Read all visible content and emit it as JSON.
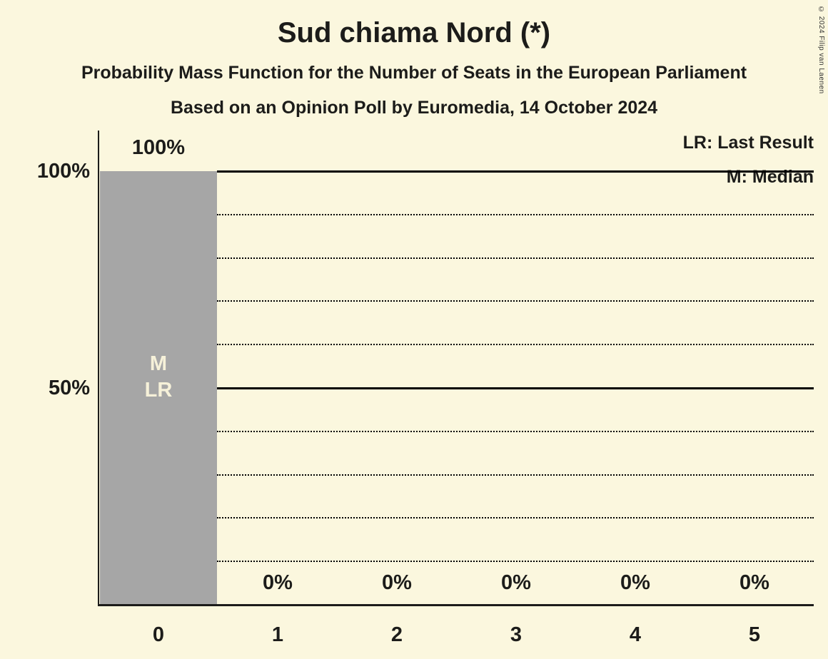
{
  "meta": {
    "title": "Sud chiama Nord (*)",
    "subtitle1": "Probability Mass Function for the Number of Seats in the European Parliament",
    "subtitle2": "Based on an Opinion Poll by Euromedia, 14 October 2024",
    "copyright": "© 2024 Filip van Laenen"
  },
  "legend": {
    "lr_label": "LR: Last Result",
    "m_label": "M: Median"
  },
  "chart_data": {
    "type": "bar",
    "title": "Sud chiama Nord (*)",
    "xlabel": "",
    "ylabel": "",
    "categories": [
      "0",
      "1",
      "2",
      "3",
      "4",
      "5"
    ],
    "values": [
      100,
      0,
      0,
      0,
      0,
      0
    ],
    "value_labels": [
      "100%",
      "0%",
      "0%",
      "0%",
      "0%",
      "0%"
    ],
    "ylim": [
      0,
      100
    ],
    "yticks": [
      {
        "value": 100,
        "label": "100%"
      },
      {
        "value": 50,
        "label": "50%"
      }
    ],
    "gridlines": {
      "solid": [
        100,
        50
      ],
      "dotted": [
        90,
        80,
        70,
        60,
        40,
        30,
        20,
        10
      ]
    },
    "bar_annotations": [
      {
        "category": "0",
        "lines": [
          "M",
          "LR"
        ]
      }
    ],
    "legend_position": "top-right",
    "grid": true
  },
  "colors": {
    "background": "#fbf7de",
    "text": "#1c1c1a",
    "bar": "#a6a6a6",
    "annotation_text": "#f6f1d9",
    "grid": "#000000"
  }
}
